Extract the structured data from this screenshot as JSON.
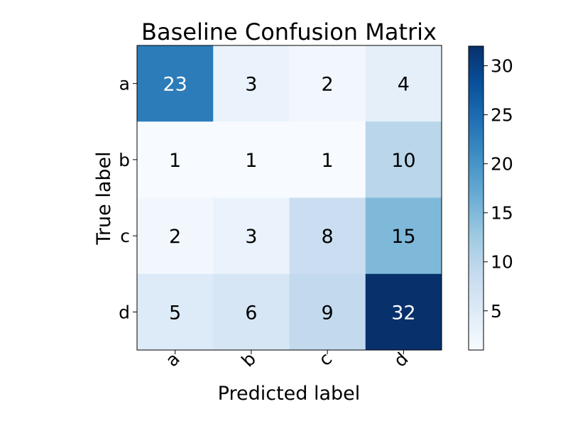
{
  "chart_data": {
    "type": "heatmap",
    "title": "Baseline Confusion Matrix",
    "xlabel": "Predicted label",
    "ylabel": "True label",
    "x_categories": [
      "a",
      "b",
      "c",
      "d"
    ],
    "y_categories": [
      "a",
      "b",
      "c",
      "d"
    ],
    "values": [
      [
        23,
        3,
        2,
        4
      ],
      [
        1,
        1,
        1,
        10
      ],
      [
        2,
        3,
        8,
        15
      ],
      [
        5,
        6,
        9,
        32
      ]
    ],
    "colormap": "Blues",
    "color_range": [
      1,
      32
    ],
    "colorbar_ticks": [
      5,
      10,
      15,
      20,
      25,
      30
    ],
    "text_color_light": "#ffffff",
    "text_color_dark": "#000000"
  }
}
